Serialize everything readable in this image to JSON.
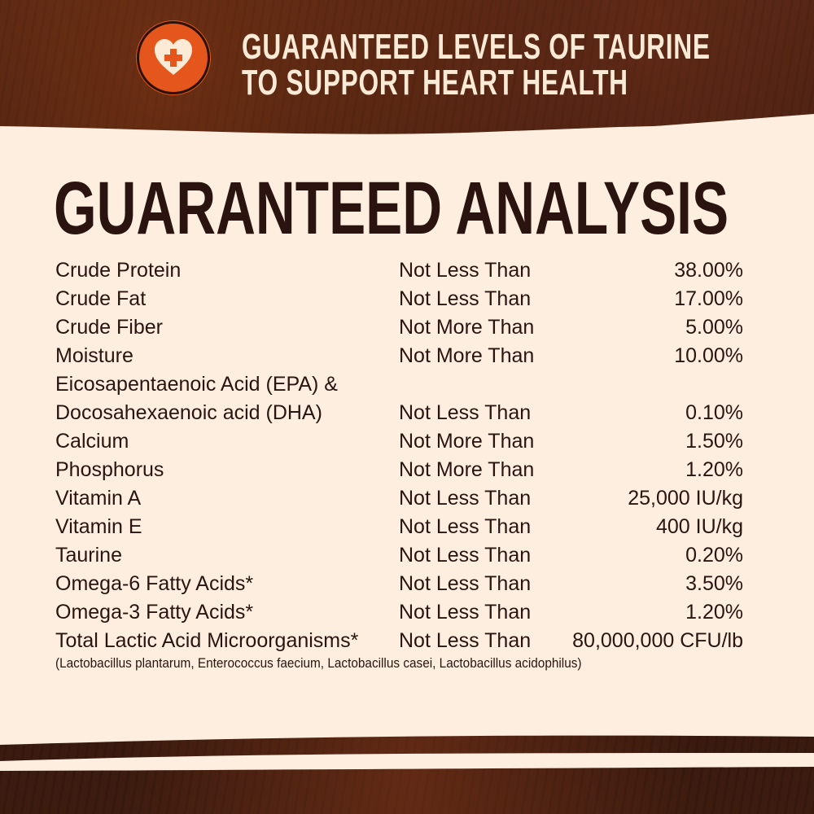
{
  "header": {
    "icon": "heart-plus-icon",
    "line1": "GUARANTEED LEVELS OF TAURINE",
    "line2": "TO SUPPORT HEART HEALTH",
    "badge_color": "#e4561c"
  },
  "title": "GUARANTEED ANALYSIS",
  "rows": [
    {
      "name": "Crude Protein",
      "qualifier": "Not Less Than",
      "value": "38.00%"
    },
    {
      "name": "Crude Fat",
      "qualifier": "Not Less Than",
      "value": "17.00%"
    },
    {
      "name": "Crude Fiber",
      "qualifier": "Not More Than",
      "value": "5.00%"
    },
    {
      "name": "Moisture",
      "qualifier": "Not More Than",
      "value": "10.00%"
    },
    {
      "name": "Eicosapentaenoic Acid (EPA) &",
      "qualifier": "",
      "value": ""
    },
    {
      "name": "Docosahexaenoic acid (DHA)",
      "qualifier": "Not Less Than",
      "value": "0.10%"
    },
    {
      "name": "Calcium",
      "qualifier": "Not More Than",
      "value": "1.50%"
    },
    {
      "name": "Phosphorus",
      "qualifier": "Not More Than",
      "value": "1.20%"
    },
    {
      "name": "Vitamin A",
      "qualifier": "Not Less Than",
      "value": "25,000 IU/kg"
    },
    {
      "name": "Vitamin E",
      "qualifier": "Not Less Than",
      "value": "400 IU/kg"
    },
    {
      "name": "Taurine",
      "qualifier": "Not Less Than",
      "value": "0.20%"
    },
    {
      "name": "Omega-6 Fatty Acids*",
      "qualifier": "Not Less Than",
      "value": "3.50%"
    },
    {
      "name": "Omega-3 Fatty Acids*",
      "qualifier": "Not Less Than",
      "value": "1.20%"
    },
    {
      "name": "Total Lactic Acid Microorganisms*",
      "qualifier": "Not Less Than",
      "value": "80,000,000 CFU/lb"
    }
  ],
  "footnote": "(Lactobacillus plantarum, Enterococcus faecium, Lactobacillus casei, Lactobacillus acidophilus)"
}
